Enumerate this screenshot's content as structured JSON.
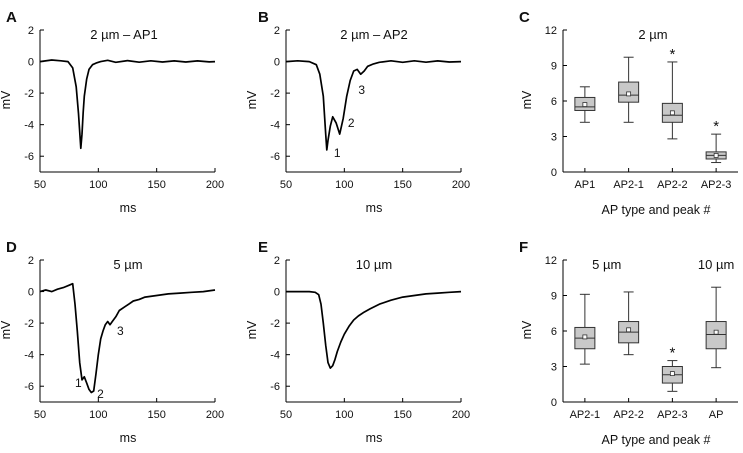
{
  "chart_data": [
    {
      "id": "A",
      "panel_label": "A",
      "type": "line",
      "title": "2 µm – AP1",
      "xlabel": "ms",
      "ylabel": "mV",
      "xlim": [
        50,
        200
      ],
      "ylim": [
        -7,
        2
      ],
      "xticks": [
        50,
        100,
        150,
        200
      ],
      "yticks": [
        2,
        0,
        -2,
        -4,
        -6
      ],
      "series": [
        {
          "name": "AP1 trace",
          "x": [
            50,
            60,
            68,
            74,
            78,
            81,
            83,
            85,
            86,
            87,
            88,
            90,
            92,
            95,
            98,
            102,
            108,
            115,
            125,
            135,
            145,
            155,
            165,
            175,
            185,
            195,
            200
          ],
          "y": [
            0,
            0.1,
            0.05,
            0.0,
            -0.4,
            -1.6,
            -3.3,
            -5.5,
            -4.6,
            -3.2,
            -2.2,
            -1.1,
            -0.5,
            -0.2,
            -0.1,
            0,
            0.08,
            -0.05,
            0.06,
            -0.04,
            0.05,
            -0.03,
            0.04,
            -0.03,
            0.04,
            -0.02,
            0
          ]
        }
      ],
      "annotations": []
    },
    {
      "id": "B",
      "panel_label": "B",
      "type": "line",
      "title": "2 µm – AP2",
      "xlabel": "ms",
      "ylabel": "mV",
      "xlim": [
        50,
        200
      ],
      "ylim": [
        -7,
        2
      ],
      "xticks": [
        50,
        100,
        150,
        200
      ],
      "yticks": [
        2,
        0,
        -2,
        -4,
        -6
      ],
      "series": [
        {
          "name": "AP2 trace",
          "x": [
            50,
            60,
            70,
            76,
            79,
            82,
            84,
            85,
            86,
            88,
            90,
            93,
            96,
            99,
            102,
            105,
            108,
            111,
            114,
            117,
            120,
            125,
            130,
            140,
            150,
            160,
            170,
            180,
            190,
            200
          ],
          "y": [
            0,
            0.05,
            0,
            -0.2,
            -0.8,
            -2.2,
            -4.6,
            -5.6,
            -5.0,
            -4.1,
            -3.5,
            -3.9,
            -4.6,
            -3.6,
            -2.2,
            -1.2,
            -0.6,
            -0.5,
            -0.8,
            -0.6,
            -0.3,
            -0.15,
            -0.05,
            0.05,
            -0.05,
            0.05,
            -0.04,
            0.04,
            -0.03,
            0
          ]
        }
      ],
      "annotations": [
        {
          "text": "1",
          "x": 91,
          "y": -5.8
        },
        {
          "text": "2",
          "x": 103,
          "y": -3.9
        },
        {
          "text": "3",
          "x": 112,
          "y": -1.8
        }
      ]
    },
    {
      "id": "C",
      "panel_label": "C",
      "type": "box",
      "title": "2 µm",
      "xlabel": "AP type and peak #",
      "ylabel": "mV",
      "ylim": [
        0,
        12
      ],
      "yticks": [
        0,
        3,
        6,
        9,
        12
      ],
      "categories": [
        "AP1",
        "AP2-1",
        "AP2-2",
        "AP2-3"
      ],
      "boxes": [
        {
          "min": 4.2,
          "q1": 5.2,
          "median": 5.5,
          "mean": 5.7,
          "q3": 6.3,
          "max": 7.2,
          "star": ""
        },
        {
          "min": 4.2,
          "q1": 5.9,
          "median": 6.5,
          "mean": 6.6,
          "q3": 7.6,
          "max": 9.7,
          "star": ""
        },
        {
          "min": 2.8,
          "q1": 4.2,
          "median": 4.8,
          "mean": 5.0,
          "q3": 5.8,
          "max": 9.3,
          "star": "*"
        },
        {
          "min": 0.8,
          "q1": 1.1,
          "median": 1.4,
          "mean": 1.4,
          "q3": 1.7,
          "max": 3.2,
          "star": "*"
        }
      ],
      "group_labels": []
    },
    {
      "id": "D",
      "panel_label": "D",
      "type": "line",
      "title": "5 µm",
      "xlabel": "ms",
      "ylabel": "mV",
      "xlim": [
        50,
        200
      ],
      "ylim": [
        -7,
        2
      ],
      "xticks": [
        50,
        100,
        150,
        200
      ],
      "yticks": [
        2,
        0,
        -2,
        -4,
        -6
      ],
      "series": [
        {
          "name": "5 µm trace",
          "x": [
            50,
            55,
            60,
            65,
            70,
            75,
            78,
            80,
            82,
            84,
            86,
            88,
            90,
            92,
            94,
            96,
            98,
            100,
            102,
            104,
            106,
            108,
            110,
            112,
            115,
            118,
            122,
            126,
            130,
            135,
            140,
            150,
            160,
            170,
            180,
            190,
            200
          ],
          "y": [
            0.0,
            0.1,
            0.0,
            0.15,
            0.25,
            0.4,
            0.5,
            -0.8,
            -2.5,
            -4.5,
            -5.6,
            -5.4,
            -5.8,
            -6.2,
            -6.4,
            -6.3,
            -5.2,
            -4.0,
            -3.0,
            -2.5,
            -2.1,
            -1.9,
            -2.1,
            -1.9,
            -1.6,
            -1.2,
            -1.0,
            -0.8,
            -0.6,
            -0.5,
            -0.35,
            -0.25,
            -0.15,
            -0.1,
            -0.05,
            0.0,
            0.1
          ]
        }
      ],
      "annotations": [
        {
          "text": "1",
          "x": 80,
          "y": -5.8
        },
        {
          "text": "2",
          "x": 99,
          "y": -6.5
        },
        {
          "text": "3",
          "x": 116,
          "y": -2.5
        }
      ]
    },
    {
      "id": "E",
      "panel_label": "E",
      "type": "line",
      "title": "10 µm",
      "xlabel": "ms",
      "ylabel": "mV",
      "xlim": [
        50,
        200
      ],
      "ylim": [
        -7,
        2
      ],
      "xticks": [
        50,
        100,
        150,
        200
      ],
      "yticks": [
        2,
        0,
        -2,
        -4,
        -6
      ],
      "series": [
        {
          "name": "10 µm trace",
          "x": [
            50,
            60,
            70,
            75,
            78,
            80,
            82,
            84,
            86,
            88,
            90,
            92,
            94,
            97,
            100,
            104,
            108,
            112,
            117,
            122,
            130,
            140,
            150,
            160,
            170,
            180,
            190,
            200
          ],
          "y": [
            0,
            0,
            0,
            -0.05,
            -0.2,
            -0.8,
            -2.0,
            -3.4,
            -4.5,
            -4.85,
            -4.7,
            -4.3,
            -3.8,
            -3.2,
            -2.7,
            -2.2,
            -1.8,
            -1.55,
            -1.3,
            -1.1,
            -0.8,
            -0.55,
            -0.35,
            -0.25,
            -0.15,
            -0.1,
            -0.05,
            0
          ]
        }
      ],
      "annotations": []
    },
    {
      "id": "F",
      "panel_label": "F",
      "type": "box",
      "title": "",
      "xlabel": "AP type and peak #",
      "ylabel": "mV",
      "ylim": [
        0,
        12
      ],
      "yticks": [
        0,
        3,
        6,
        9,
        12
      ],
      "categories": [
        "AP2-1",
        "AP2-2",
        "AP2-3",
        "AP"
      ],
      "boxes": [
        {
          "min": 3.2,
          "q1": 4.5,
          "median": 5.4,
          "mean": 5.5,
          "q3": 6.3,
          "max": 9.1,
          "star": ""
        },
        {
          "min": 4.0,
          "q1": 5.0,
          "median": 5.9,
          "mean": 6.1,
          "q3": 6.8,
          "max": 9.3,
          "star": ""
        },
        {
          "min": 0.9,
          "q1": 1.6,
          "median": 2.3,
          "mean": 2.4,
          "q3": 3.0,
          "max": 3.5,
          "star": "*"
        },
        {
          "min": 2.9,
          "q1": 4.5,
          "median": 5.7,
          "mean": 5.9,
          "q3": 6.8,
          "max": 9.7,
          "star": ""
        }
      ],
      "group_labels": [
        {
          "text": "5 µm",
          "center": 1.5
        },
        {
          "text": "10 µm",
          "center": 4
        }
      ]
    }
  ]
}
